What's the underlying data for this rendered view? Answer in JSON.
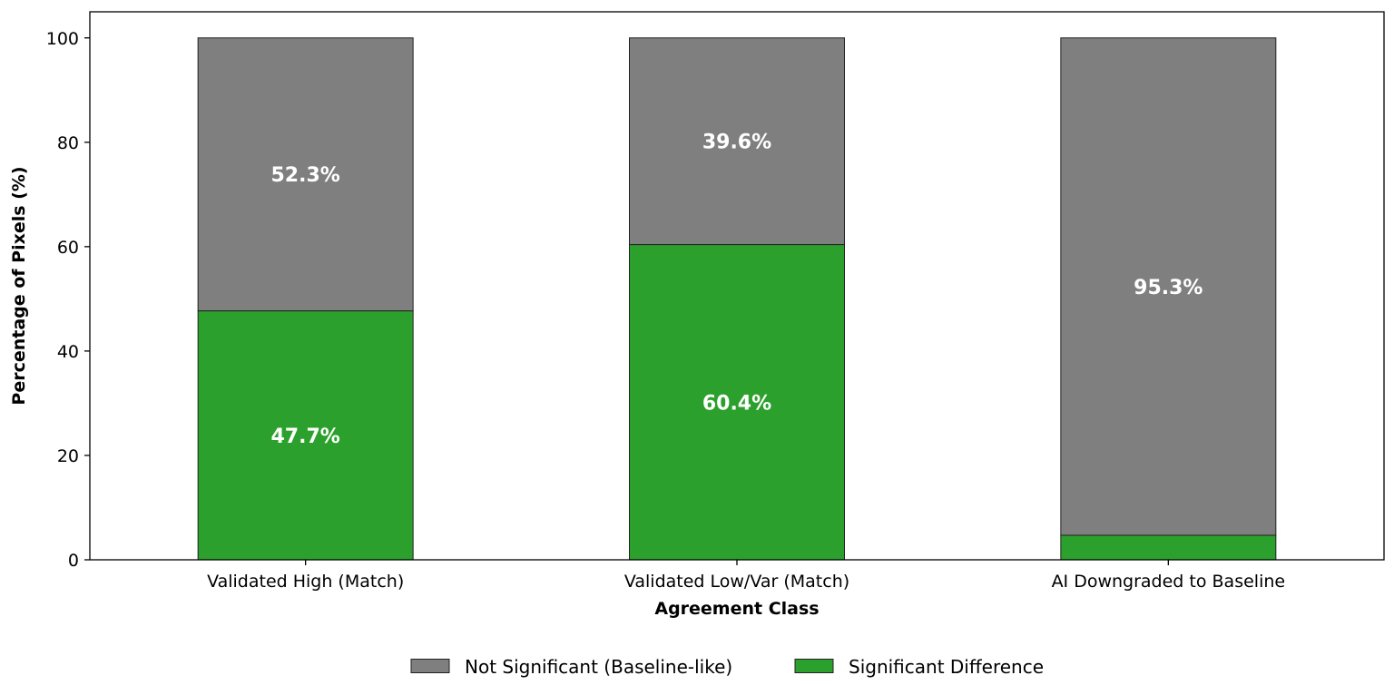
{
  "chart_data": {
    "type": "bar",
    "stacked": true,
    "categories": [
      "Validated High (Match)",
      "Validated Low/Var (Match)",
      "AI Downgraded to Baseline"
    ],
    "series": [
      {
        "name": "Significant Difference",
        "color": "#2ca02c",
        "values": [
          47.7,
          60.4,
          4.7
        ],
        "labels": [
          "47.7%",
          "60.4%",
          ""
        ]
      },
      {
        "name": "Not Significant (Baseline-like)",
        "color": "#7f7f7f",
        "values": [
          52.3,
          39.6,
          95.3
        ],
        "labels": [
          "52.3%",
          "39.6%",
          "95.3%"
        ]
      }
    ],
    "xlabel": "Agreement Class",
    "ylabel": "Percentage of Pixels (%)",
    "ylim": [
      0,
      105
    ],
    "yticks": [
      0,
      20,
      40,
      60,
      80,
      100
    ],
    "ytick_labels": [
      "0",
      "20",
      "40",
      "60",
      "80",
      "100"
    ],
    "grid": false,
    "legend": {
      "placement": "bottom-center",
      "entries": [
        {
          "label": "Not Significant (Baseline-like)",
          "color": "#7f7f7f"
        },
        {
          "label": "Significant Difference",
          "color": "#2ca02c"
        }
      ]
    }
  }
}
